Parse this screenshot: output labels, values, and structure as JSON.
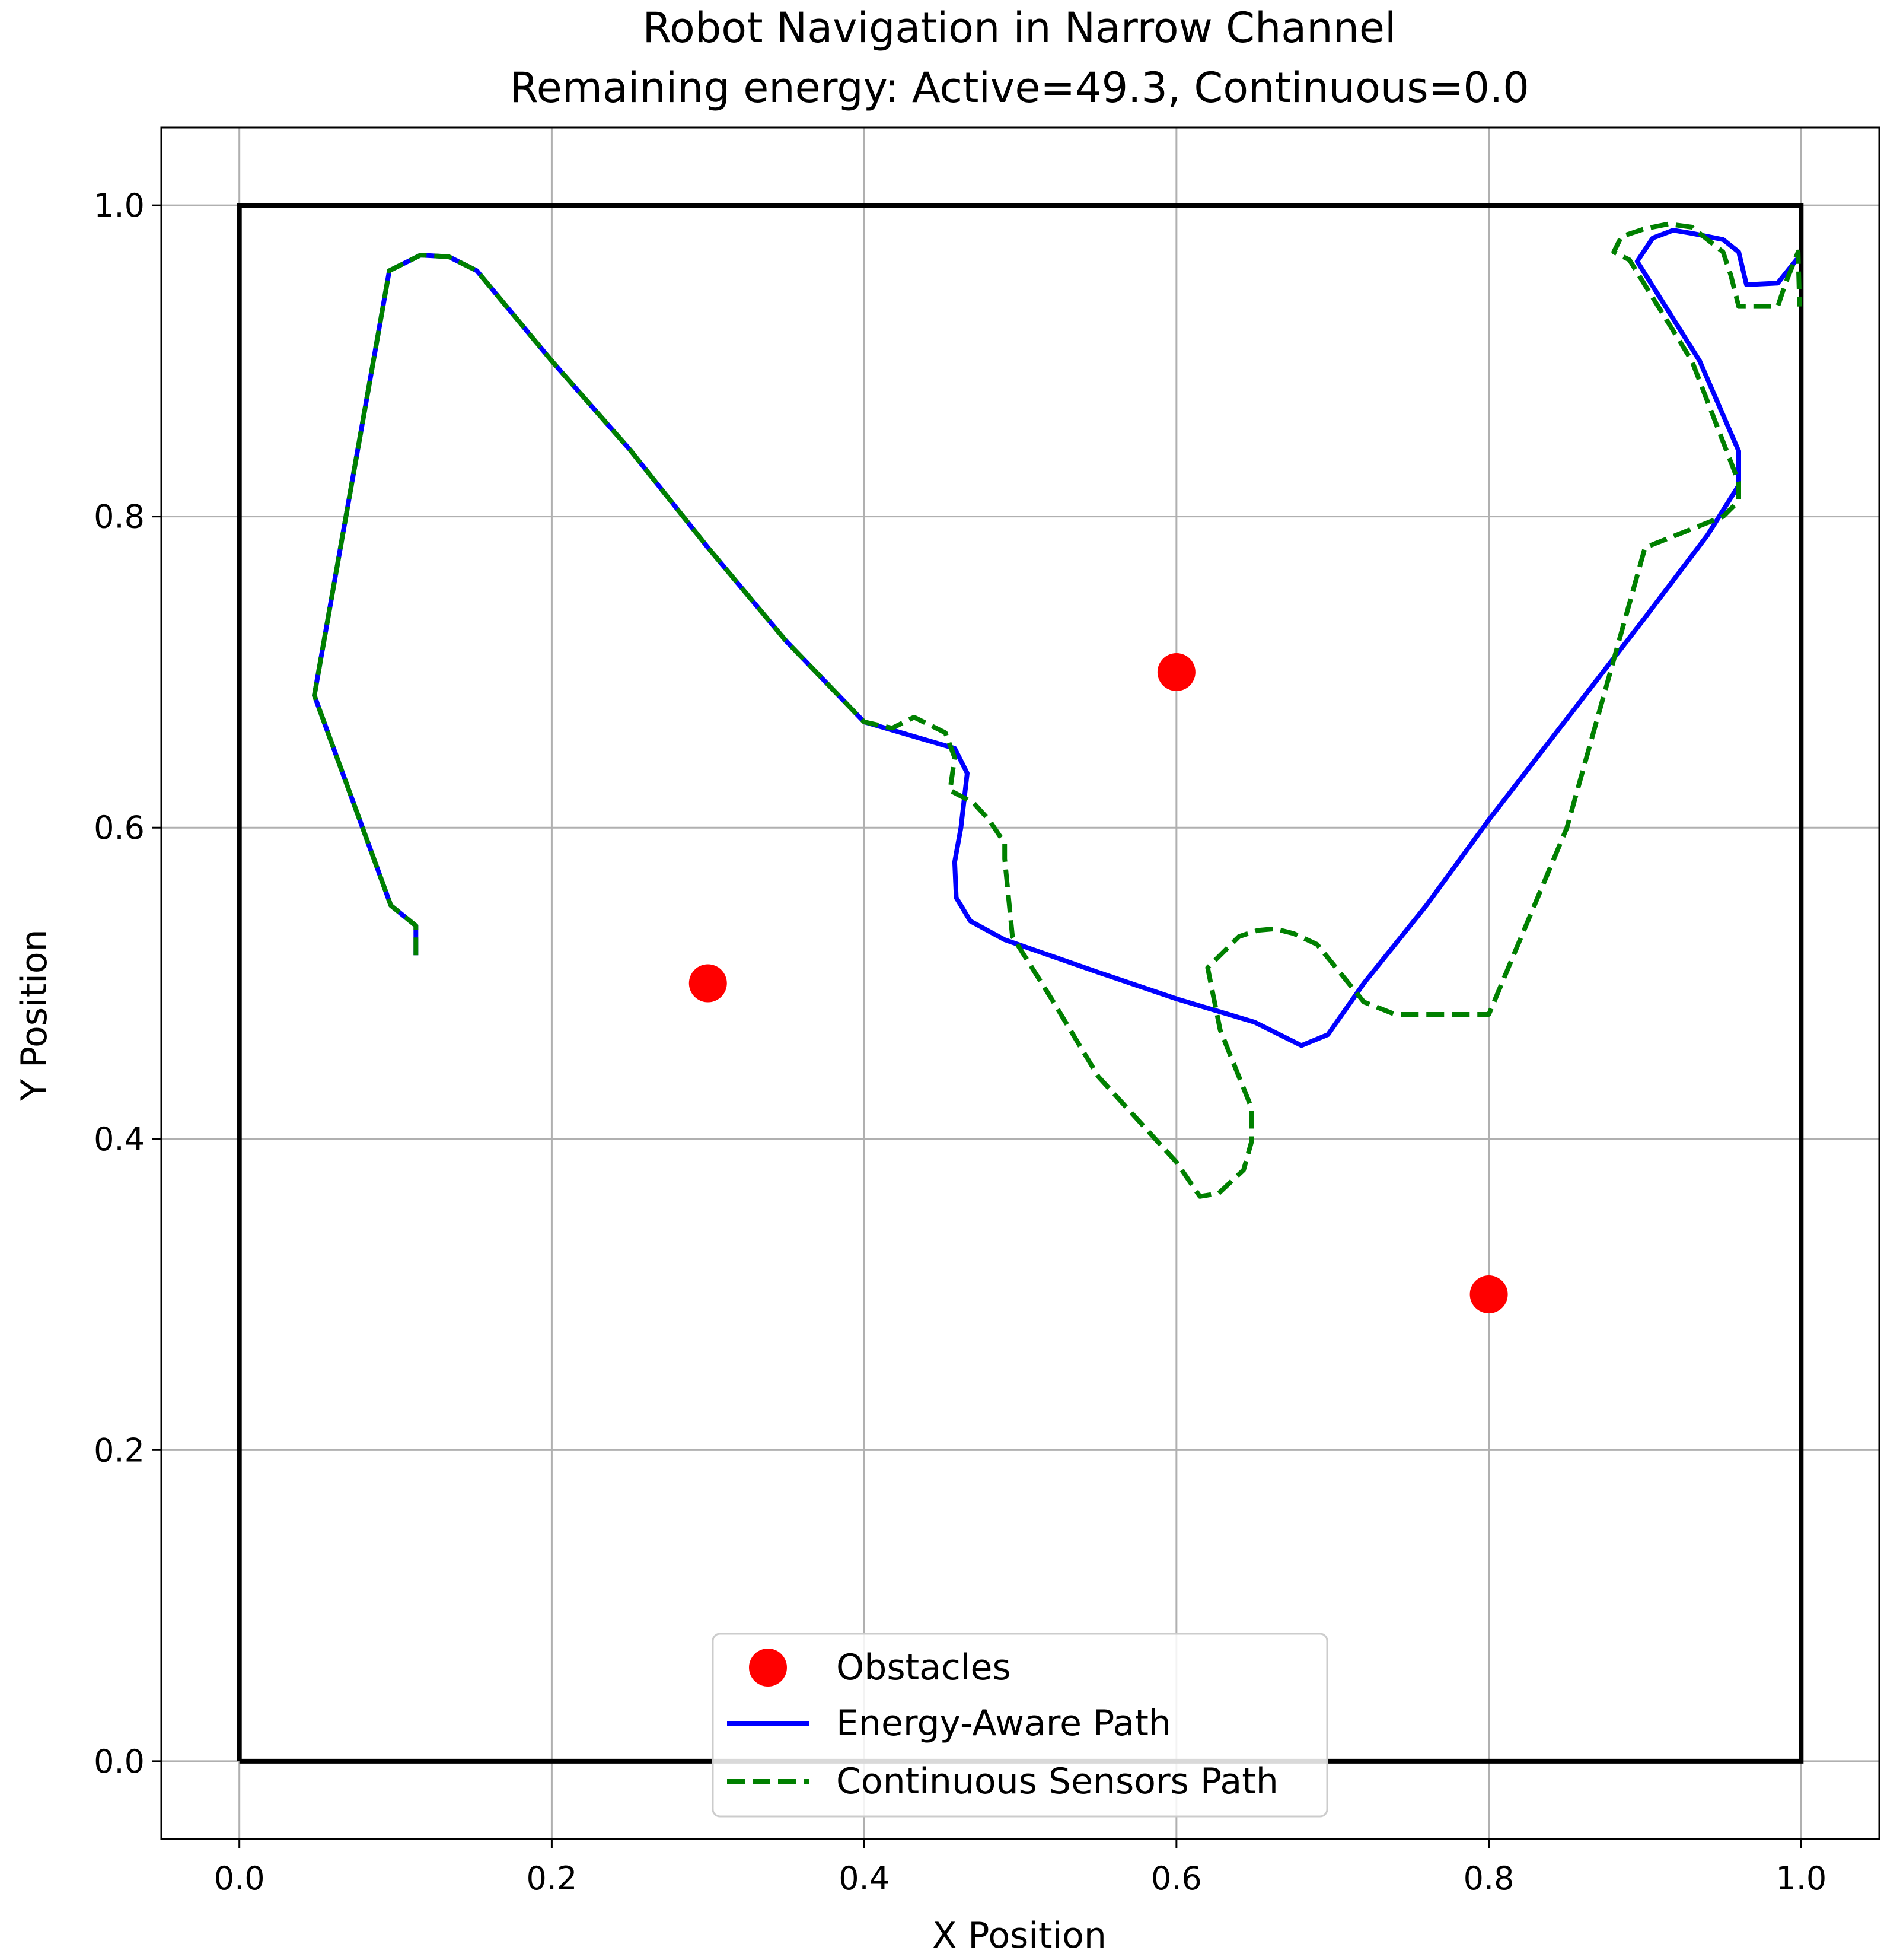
{
  "chart_data": {
    "type": "line",
    "title": "Robot Navigation in Narrow Channel",
    "subtitle": "Remaining energy: Active=49.3, Continuous=0.0",
    "xlabel": "X Position",
    "ylabel": "Y Position",
    "xlim": [
      -0.05,
      1.05
    ],
    "ylim": [
      -0.05,
      1.05
    ],
    "xticks": [
      0.0,
      0.2,
      0.4,
      0.6,
      0.8,
      1.0
    ],
    "yticks": [
      0.0,
      0.2,
      0.4,
      0.6,
      0.8,
      1.0
    ],
    "xtick_labels": [
      "0.0",
      "0.2",
      "0.4",
      "0.6",
      "0.8",
      "1.0"
    ],
    "ytick_labels": [
      "0.0",
      "0.2",
      "0.4",
      "0.6",
      "0.8",
      "1.0"
    ],
    "grid": true,
    "legend_position": "lower-center",
    "boundary": {
      "x": [
        0,
        1,
        1,
        0,
        0
      ],
      "y": [
        0,
        0,
        1,
        1,
        0
      ],
      "color": "#000000"
    },
    "obstacles": {
      "name": "Obstacles",
      "color": "#ff0000",
      "x": [
        0.3,
        0.6,
        0.8
      ],
      "y": [
        0.5,
        0.7,
        0.3
      ]
    },
    "series": [
      {
        "name": "Energy-Aware Path",
        "color": "#0000ff",
        "style": "solid",
        "x": [
          0.113,
          0.113,
          0.097,
          0.048,
          0.096,
          0.116,
          0.134,
          0.152,
          0.2,
          0.25,
          0.3,
          0.35,
          0.4,
          0.458,
          0.466,
          0.462,
          0.458,
          0.459,
          0.468,
          0.49,
          0.55,
          0.6,
          0.65,
          0.68,
          0.697,
          0.72,
          0.76,
          0.8,
          0.85,
          0.9,
          0.94,
          0.96,
          0.96,
          0.935,
          0.895,
          0.905,
          0.918,
          0.93,
          0.95,
          0.96,
          0.965,
          0.985,
          0.997,
          0.999
        ],
        "y": [
          0.518,
          0.537,
          0.55,
          0.685,
          0.958,
          0.968,
          0.967,
          0.958,
          0.9,
          0.843,
          0.78,
          0.72,
          0.668,
          0.651,
          0.635,
          0.6,
          0.578,
          0.555,
          0.54,
          0.528,
          0.507,
          0.49,
          0.475,
          0.46,
          0.467,
          0.5,
          0.55,
          0.605,
          0.67,
          0.735,
          0.788,
          0.82,
          0.842,
          0.9,
          0.964,
          0.979,
          0.984,
          0.982,
          0.978,
          0.97,
          0.949,
          0.95,
          0.965,
          0.965
        ]
      },
      {
        "name": "Continuous Sensors Path",
        "color": "#008000",
        "style": "dashed",
        "x": [
          0.113,
          0.113,
          0.097,
          0.048,
          0.096,
          0.116,
          0.134,
          0.152,
          0.2,
          0.25,
          0.3,
          0.35,
          0.4,
          0.418,
          0.432,
          0.452,
          0.458,
          0.455,
          0.47,
          0.48,
          0.49,
          0.49,
          0.495,
          0.52,
          0.55,
          0.6,
          0.615,
          0.627,
          0.643,
          0.648,
          0.648,
          0.64,
          0.628,
          0.62,
          0.64,
          0.652,
          0.663,
          0.675,
          0.69,
          0.72,
          0.74,
          0.8,
          0.85,
          0.9,
          0.95,
          0.96,
          0.96,
          0.93,
          0.89,
          0.88,
          0.885,
          0.9,
          0.915,
          0.93,
          0.95,
          0.955,
          0.96,
          0.97,
          0.985,
          0.99,
          0.998,
          0.999
        ],
        "y": [
          0.518,
          0.537,
          0.55,
          0.685,
          0.958,
          0.968,
          0.967,
          0.958,
          0.9,
          0.843,
          0.78,
          0.72,
          0.668,
          0.664,
          0.671,
          0.661,
          0.645,
          0.624,
          0.616,
          0.605,
          0.59,
          0.58,
          0.53,
          0.49,
          0.44,
          0.385,
          0.363,
          0.365,
          0.38,
          0.398,
          0.42,
          0.44,
          0.47,
          0.51,
          0.53,
          0.534,
          0.535,
          0.532,
          0.525,
          0.488,
          0.48,
          0.48,
          0.6,
          0.78,
          0.8,
          0.81,
          0.822,
          0.9,
          0.965,
          0.97,
          0.98,
          0.985,
          0.988,
          0.986,
          0.97,
          0.955,
          0.935,
          0.935,
          0.935,
          0.95,
          0.97,
          0.935
        ]
      }
    ]
  }
}
